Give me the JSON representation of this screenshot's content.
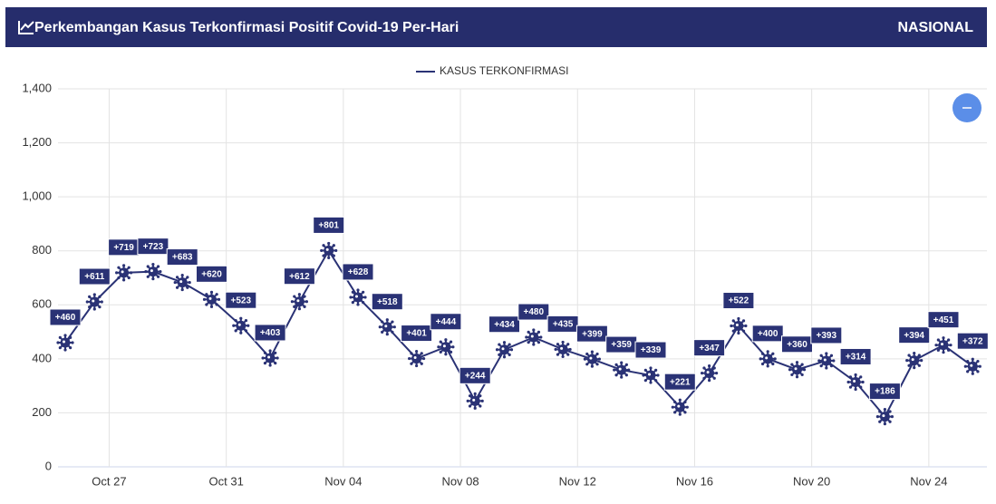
{
  "header": {
    "title": "Perkembangan Kasus Terkonfirmasi Positif Covid-19 Per-Hari",
    "region": "NASIONAL"
  },
  "chart_data": {
    "type": "line",
    "categories": [
      null,
      null,
      "Oct 27",
      null,
      null,
      null,
      "Oct 31",
      null,
      null,
      null,
      "Nov 04",
      null,
      null,
      null,
      "Nov 08",
      null,
      null,
      null,
      "Nov 12",
      null,
      null,
      null,
      "Nov 16",
      null,
      null,
      null,
      "Nov 20",
      null,
      null,
      null,
      "Nov 24",
      null
    ],
    "series": [
      {
        "name": "KASUS TERKONFIRMASI",
        "color": "#2a3275",
        "values": [
          460,
          611,
          719,
          723,
          683,
          620,
          523,
          403,
          612,
          801,
          628,
          518,
          401,
          444,
          244,
          434,
          480,
          435,
          399,
          359,
          339,
          221,
          347,
          522,
          400,
          360,
          393,
          314,
          186,
          394,
          451,
          372
        ],
        "value_labels": [
          "+460",
          "+611",
          "+719",
          "+723",
          "+683",
          "+620",
          "+523",
          "+403",
          "+612",
          "+801",
          "+628",
          "+518",
          "+401",
          "+444",
          "+244",
          "+434",
          "+480",
          "+435",
          "+399",
          "+359",
          "+339",
          "+221",
          "+347",
          "+522",
          "+400",
          "+360",
          "+393",
          "+314",
          "+186",
          "+394",
          "+451",
          "+372"
        ]
      }
    ],
    "ylim": [
      0,
      1400
    ],
    "yticks": [
      0,
      200,
      400,
      600,
      800,
      {
        "value": 1000,
        "label": "1,000"
      },
      {
        "value": 1200,
        "label": "1,200"
      },
      {
        "value": 1400,
        "label": "1,400"
      }
    ],
    "grid": true,
    "legend": "top"
  }
}
